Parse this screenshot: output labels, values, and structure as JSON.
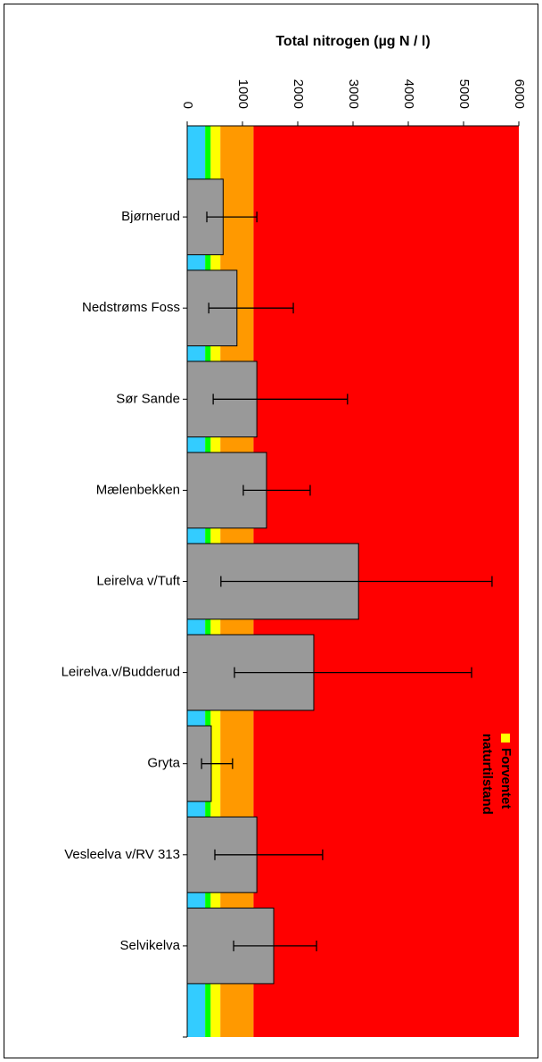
{
  "chart_data": {
    "type": "bar",
    "orientation": "horizontal",
    "title": "Total nitrogen (µg N / l)",
    "categories": [
      "Bjørnerud",
      "Nedstrøms Foss",
      "Sør Sande",
      "Mælenbekken",
      "Leirelva v/Tuft",
      "Leirelva.v/Budderud",
      "Gryta",
      "Vesleelva v/RV 313",
      "Selvikelva"
    ],
    "values": [
      650,
      900,
      1260,
      1435,
      3100,
      2290,
      435,
      1260,
      1565
    ],
    "lower": [
      355,
      390,
      470,
      1015,
      610,
      855,
      260,
      500,
      840
    ],
    "upper": [
      1260,
      1920,
      2900,
      2225,
      5515,
      5145,
      820,
      2450,
      2340
    ],
    "color": "#999999",
    "xlim": [
      0,
      6000
    ],
    "xticks": [
      0,
      1000,
      2000,
      3000,
      4000,
      5000,
      6000
    ],
    "bands": [
      {
        "from": 0,
        "to": 325,
        "color": "#33ccff"
      },
      {
        "from": 325,
        "to": 425,
        "color": "#00ff00"
      },
      {
        "from": 425,
        "to": 600,
        "color": "#ffff00"
      },
      {
        "from": 600,
        "to": 1200,
        "color": "#ff9900"
      },
      {
        "from": 1200,
        "to": 6000,
        "color": "#ff0000"
      }
    ],
    "legend": {
      "label": "Forventet naturtilstand",
      "color": "#ffff00"
    }
  }
}
